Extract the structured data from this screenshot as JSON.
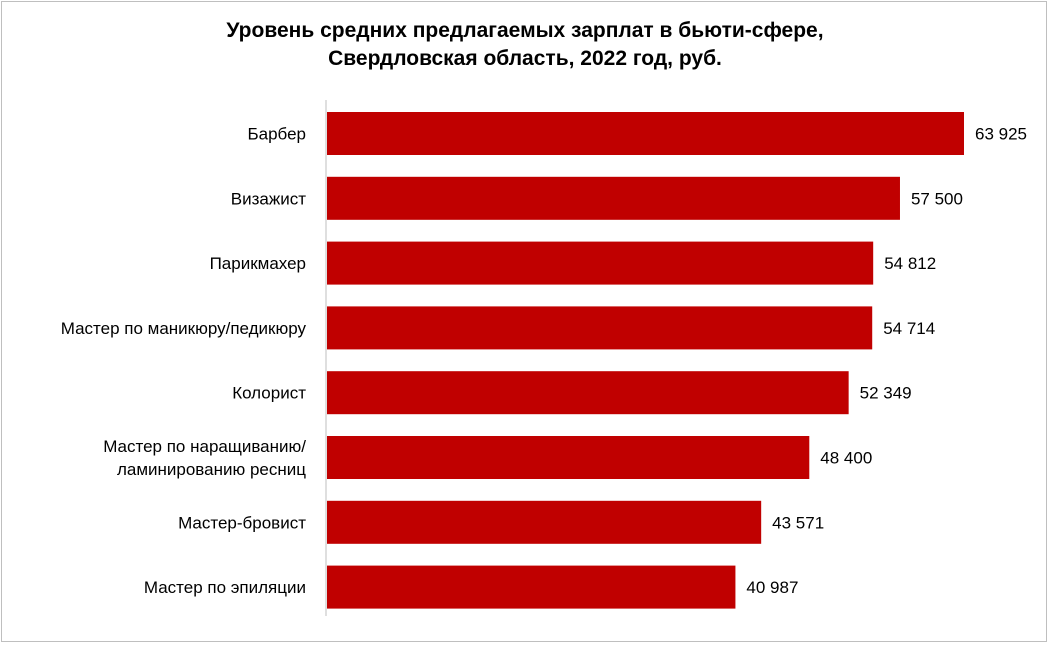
{
  "chart_data": {
    "type": "bar",
    "orientation": "horizontal",
    "title": "Уровень средних предлагаемых зарплат в бьюти-сфере,",
    "subtitle": "Свердловская область, 2022 год, руб.",
    "categories": [
      "Барбер",
      "Визажист",
      "Парикмахер",
      "Мастер по маникюру/педикюру",
      "Колорист",
      [
        "Мастер по наращиванию/",
        "ламинированию  ресниц"
      ],
      "Мастер-бровист",
      "Мастер по эпиляции"
    ],
    "values": [
      63925,
      57500,
      54812,
      54714,
      52349,
      48400,
      43571,
      40987
    ],
    "value_labels": [
      "63 925",
      "57 500",
      "54 812",
      "54 714",
      "52 349",
      "48 400",
      "43 571",
      "40 987"
    ],
    "xlim": [
      0,
      63925
    ],
    "grid": false,
    "legend": "none",
    "bar_color": "#C00000",
    "axis_color": "#bfbfbf"
  }
}
